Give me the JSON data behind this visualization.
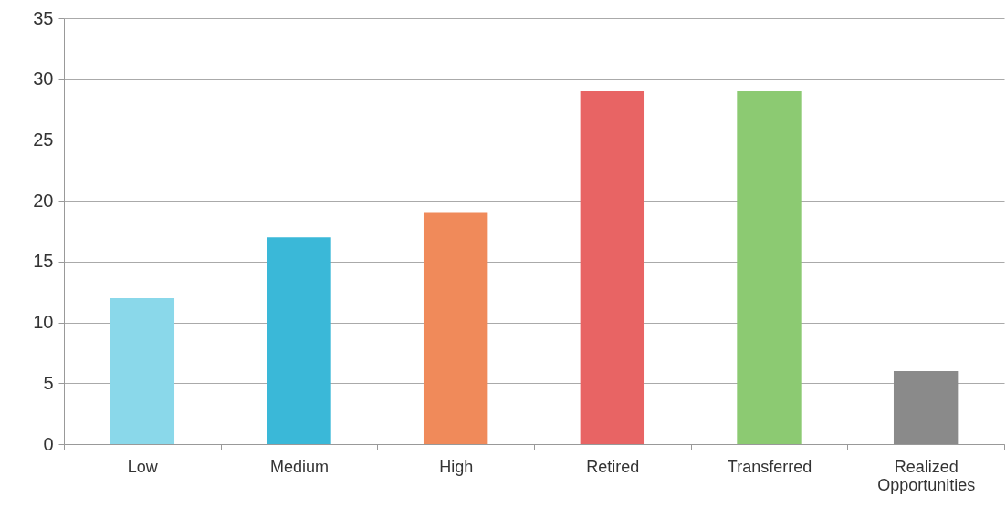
{
  "chart_data": {
    "type": "bar",
    "categories": [
      "Low",
      "Medium",
      "High",
      "Retired",
      "Transferred",
      "Realized Opportunities"
    ],
    "values": [
      12,
      17,
      19,
      29,
      29,
      6
    ],
    "colors": [
      "#8ad8ea",
      "#3ab8d8",
      "#f08a5a",
      "#e86464",
      "#8cca72",
      "#8a8a8a"
    ],
    "ylim": [
      0,
      35
    ],
    "yticks": [
      0,
      5,
      10,
      15,
      20,
      25,
      30,
      35
    ],
    "grid": "y"
  }
}
